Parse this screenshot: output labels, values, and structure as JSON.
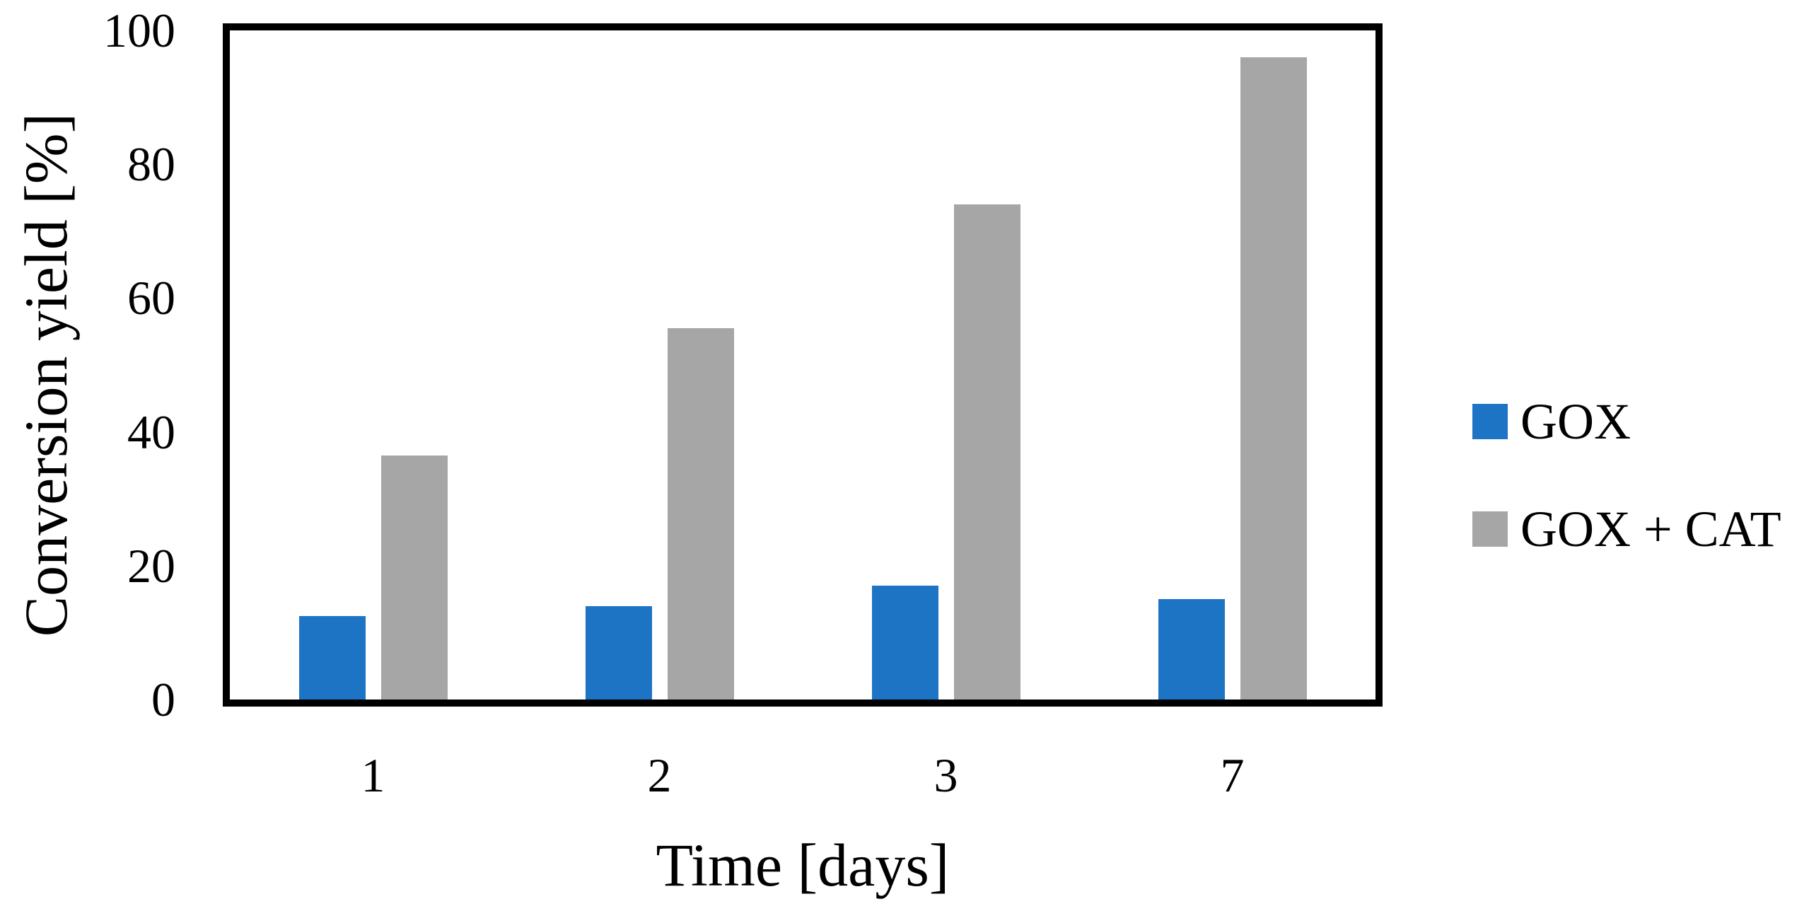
{
  "chart_data": {
    "type": "bar",
    "xlabel": "Time [days]",
    "ylabel": "Conversion yield [%]",
    "categories": [
      "1",
      "2",
      "3",
      "7"
    ],
    "series": [
      {
        "name": "GOX",
        "color": "#1E74C4",
        "values": [
          12.5,
          14,
          17,
          15
        ]
      },
      {
        "name": "GOX + CAT",
        "color": "#A6A6A6",
        "values": [
          36.5,
          55.5,
          74,
          96
        ]
      }
    ],
    "ylim": [
      0,
      100
    ],
    "yticks": [
      0,
      20,
      40,
      60,
      80,
      100
    ],
    "grid": false,
    "legend_position": "right",
    "frame_color": "#000000",
    "background_color": "#FFFFFF"
  }
}
